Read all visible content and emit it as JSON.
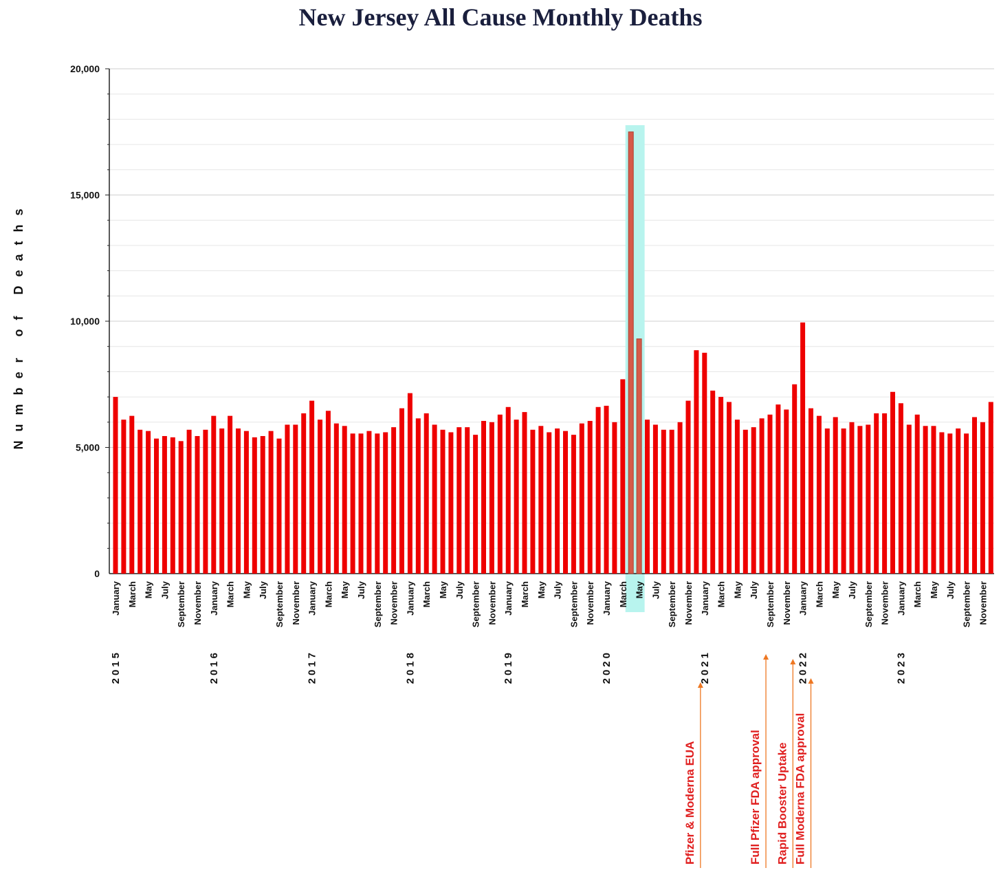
{
  "chart_data": {
    "type": "bar",
    "title": "New Jersey All Cause Monthly Deaths",
    "xlabel": "",
    "ylabel": "Number of Deaths",
    "ylim": [
      0,
      20000
    ],
    "yticks": [
      {
        "value": 0,
        "label": "0"
      },
      {
        "value": 5000,
        "label": "5,000"
      },
      {
        "value": 10000,
        "label": "10,000"
      },
      {
        "value": 15000,
        "label": "15,000"
      },
      {
        "value": 20000,
        "label": "20,000"
      }
    ],
    "bar_color": "#ee0000",
    "highlight_color": "#d65a4a",
    "highlight_band_color": "#b8f4ee",
    "highlight": {
      "start_index": 63,
      "end_index": 64
    },
    "categories": [
      "2015-01",
      "2015-02",
      "2015-03",
      "2015-04",
      "2015-05",
      "2015-06",
      "2015-07",
      "2015-08",
      "2015-09",
      "2015-10",
      "2015-11",
      "2015-12",
      "2016-01",
      "2016-02",
      "2016-03",
      "2016-04",
      "2016-05",
      "2016-06",
      "2016-07",
      "2016-08",
      "2016-09",
      "2016-10",
      "2016-11",
      "2016-12",
      "2017-01",
      "2017-02",
      "2017-03",
      "2017-04",
      "2017-05",
      "2017-06",
      "2017-07",
      "2017-08",
      "2017-09",
      "2017-10",
      "2017-11",
      "2017-12",
      "2018-01",
      "2018-02",
      "2018-03",
      "2018-04",
      "2018-05",
      "2018-06",
      "2018-07",
      "2018-08",
      "2018-09",
      "2018-10",
      "2018-11",
      "2018-12",
      "2019-01",
      "2019-02",
      "2019-03",
      "2019-04",
      "2019-05",
      "2019-06",
      "2019-07",
      "2019-08",
      "2019-09",
      "2019-10",
      "2019-11",
      "2019-12",
      "2020-01",
      "2020-02",
      "2020-03",
      "2020-04",
      "2020-05",
      "2020-06",
      "2020-07",
      "2020-08",
      "2020-09",
      "2020-10",
      "2020-11",
      "2020-12",
      "2021-01",
      "2021-02",
      "2021-03",
      "2021-04",
      "2021-05",
      "2021-06",
      "2021-07",
      "2021-08",
      "2021-09",
      "2021-10",
      "2021-11",
      "2021-12",
      "2022-01",
      "2022-02",
      "2022-03",
      "2022-04",
      "2022-05",
      "2022-06",
      "2022-07",
      "2022-08",
      "2022-09",
      "2022-10",
      "2022-11",
      "2022-12",
      "2023-01",
      "2023-02",
      "2023-03",
      "2023-04",
      "2023-05",
      "2023-06",
      "2023-07",
      "2023-08",
      "2023-09",
      "2023-10",
      "2023-11",
      "2023-12"
    ],
    "values": [
      7000,
      6100,
      6250,
      5700,
      5650,
      5350,
      5450,
      5400,
      5250,
      5700,
      5450,
      5700,
      6250,
      5750,
      6250,
      5750,
      5650,
      5400,
      5450,
      5650,
      5350,
      5900,
      5900,
      6350,
      6850,
      6100,
      6450,
      5950,
      5850,
      5550,
      5550,
      5650,
      5550,
      5600,
      5800,
      6550,
      7150,
      6150,
      6350,
      5900,
      5700,
      5600,
      5800,
      5800,
      5500,
      6050,
      6000,
      6300,
      6600,
      6100,
      6400,
      5700,
      5850,
      5600,
      5750,
      5650,
      5500,
      5950,
      6050,
      6600,
      6650,
      6000,
      7700,
      17500,
      9300,
      6100,
      5900,
      5700,
      5700,
      6000,
      6850,
      8850,
      8750,
      7250,
      7000,
      6800,
      6100,
      5700,
      5800,
      6150,
      6300,
      6700,
      6500,
      7500,
      9950,
      6550,
      6250,
      5750,
      6200,
      5750,
      6000,
      5850,
      5900,
      6350,
      6350,
      7200,
      6750,
      5900,
      6300,
      5850,
      5850,
      5600,
      5550,
      5750,
      5550,
      6200,
      6000,
      6800
    ],
    "x_tick_labels": [
      {
        "index": 0,
        "label": "January"
      },
      {
        "index": 2,
        "label": "March"
      },
      {
        "index": 4,
        "label": "May"
      },
      {
        "index": 6,
        "label": "July"
      },
      {
        "index": 8,
        "label": "September"
      },
      {
        "index": 10,
        "label": "November"
      },
      {
        "index": 12,
        "label": "January"
      },
      {
        "index": 14,
        "label": "March"
      },
      {
        "index": 16,
        "label": "May"
      },
      {
        "index": 18,
        "label": "July"
      },
      {
        "index": 20,
        "label": "September"
      },
      {
        "index": 22,
        "label": "November"
      },
      {
        "index": 24,
        "label": "January"
      },
      {
        "index": 26,
        "label": "March"
      },
      {
        "index": 28,
        "label": "May"
      },
      {
        "index": 30,
        "label": "July"
      },
      {
        "index": 32,
        "label": "September"
      },
      {
        "index": 34,
        "label": "November"
      },
      {
        "index": 36,
        "label": "January"
      },
      {
        "index": 38,
        "label": "March"
      },
      {
        "index": 40,
        "label": "May"
      },
      {
        "index": 42,
        "label": "July"
      },
      {
        "index": 44,
        "label": "September"
      },
      {
        "index": 46,
        "label": "November"
      },
      {
        "index": 48,
        "label": "January"
      },
      {
        "index": 50,
        "label": "March"
      },
      {
        "index": 52,
        "label": "May"
      },
      {
        "index": 54,
        "label": "July"
      },
      {
        "index": 56,
        "label": "September"
      },
      {
        "index": 58,
        "label": "November"
      },
      {
        "index": 60,
        "label": "January"
      },
      {
        "index": 62,
        "label": "March"
      },
      {
        "index": 64,
        "label": "May"
      },
      {
        "index": 66,
        "label": "July"
      },
      {
        "index": 68,
        "label": "September"
      },
      {
        "index": 70,
        "label": "November"
      },
      {
        "index": 72,
        "label": "January"
      },
      {
        "index": 74,
        "label": "March"
      },
      {
        "index": 76,
        "label": "May"
      },
      {
        "index": 78,
        "label": "July"
      },
      {
        "index": 80,
        "label": "September"
      },
      {
        "index": 82,
        "label": "November"
      },
      {
        "index": 84,
        "label": "January"
      },
      {
        "index": 86,
        "label": "March"
      },
      {
        "index": 88,
        "label": "May"
      },
      {
        "index": 90,
        "label": "July"
      },
      {
        "index": 92,
        "label": "September"
      },
      {
        "index": 94,
        "label": "November"
      },
      {
        "index": 96,
        "label": "January"
      },
      {
        "index": 98,
        "label": "March"
      },
      {
        "index": 100,
        "label": "May"
      },
      {
        "index": 102,
        "label": "July"
      },
      {
        "index": 104,
        "label": "September"
      },
      {
        "index": 106,
        "label": "November"
      }
    ],
    "year_labels": [
      {
        "index": 0,
        "label": "2015"
      },
      {
        "index": 12,
        "label": "2016"
      },
      {
        "index": 24,
        "label": "2017"
      },
      {
        "index": 36,
        "label": "2018"
      },
      {
        "index": 48,
        "label": "2019"
      },
      {
        "index": 60,
        "label": "2020"
      },
      {
        "index": 72,
        "label": "2021"
      },
      {
        "index": 84,
        "label": "2022"
      },
      {
        "index": 96,
        "label": "2023"
      }
    ],
    "annotations": [
      {
        "text": "Pfizer & Moderna EUA",
        "month_index": 71.5,
        "color": "#e02020",
        "arrow_color": "#ee7722"
      },
      {
        "text": "Full Pfizer FDA approval",
        "month_index": 79.5,
        "color": "#e02020",
        "arrow_color": "#ee7722"
      },
      {
        "text": "Rapid Booster Uptake",
        "month_index": 82.8,
        "color": "#e02020",
        "arrow_color": "#ee7722"
      },
      {
        "text": "Full Moderna FDA approval",
        "month_index": 85,
        "color": "#e02020",
        "arrow_color": "#ee7722"
      }
    ]
  }
}
